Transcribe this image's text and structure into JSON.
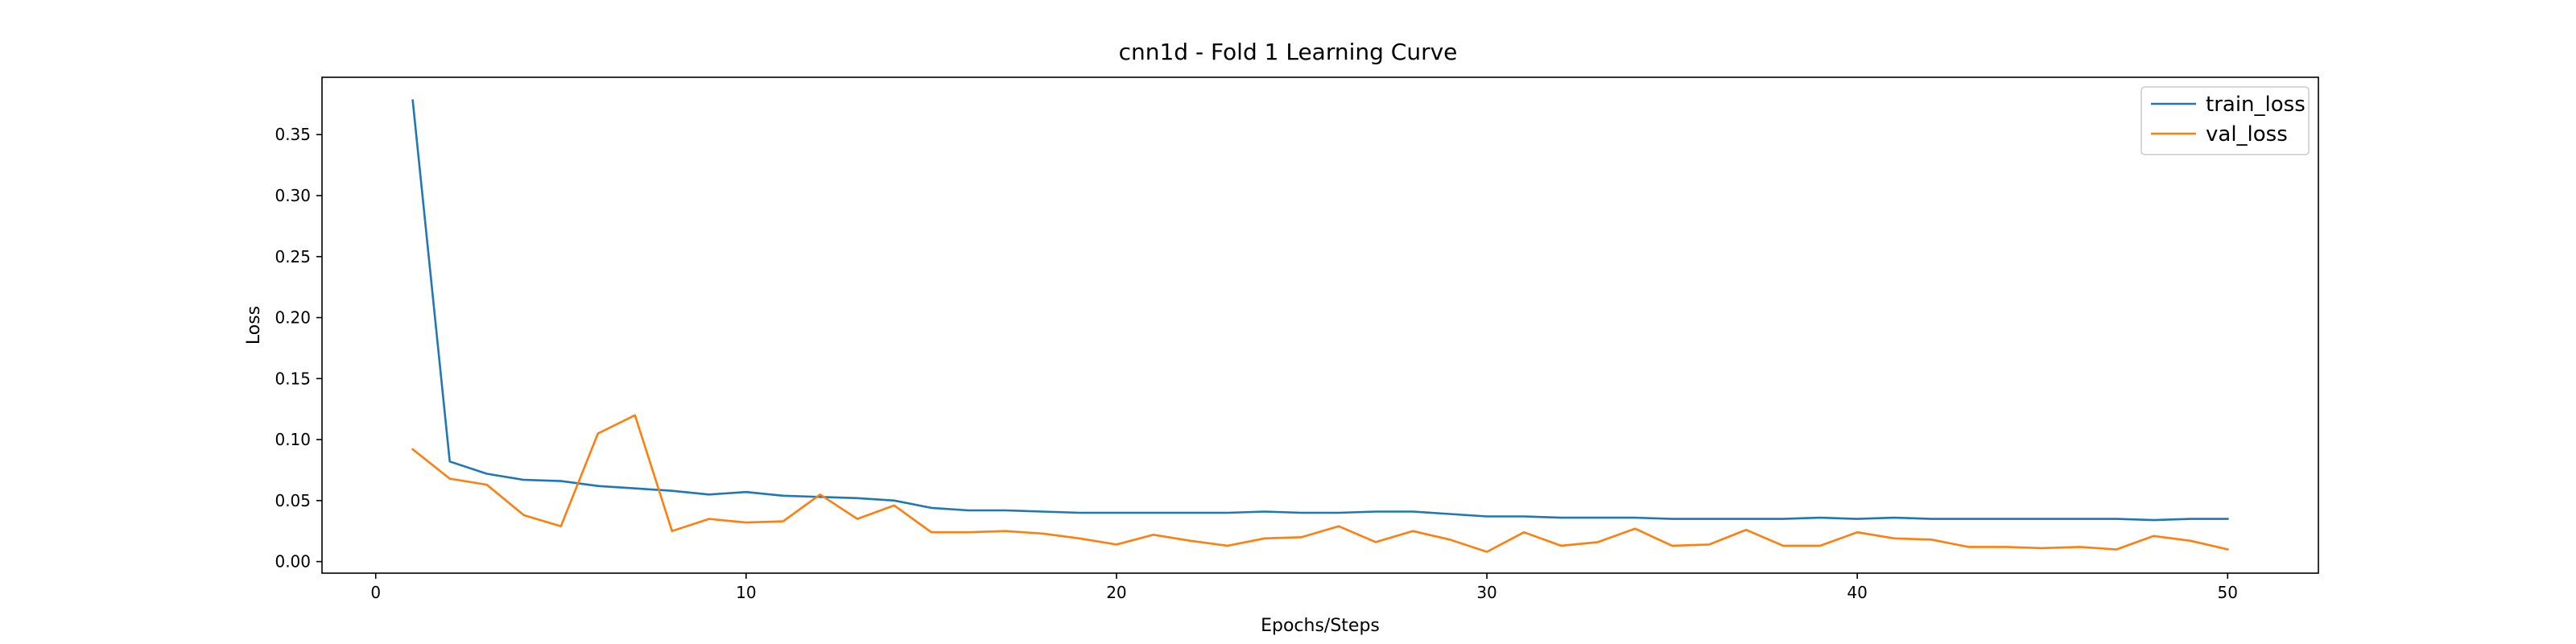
{
  "chart_data": {
    "type": "line",
    "title": "cnn1d - Fold 1 Learning Curve",
    "xlabel": "Epochs/Steps",
    "ylabel": "Loss",
    "xlim": [
      -1.45,
      52.45
    ],
    "ylim": [
      -0.0095,
      0.397
    ],
    "xticks": [
      0,
      10,
      20,
      30,
      40,
      50
    ],
    "yticks": [
      0.0,
      0.05,
      0.1,
      0.15,
      0.2,
      0.25,
      0.3,
      0.35
    ],
    "grid": false,
    "legend_position": "top-right",
    "x": [
      1,
      2,
      3,
      4,
      5,
      6,
      7,
      8,
      9,
      10,
      11,
      12,
      13,
      14,
      15,
      16,
      17,
      18,
      19,
      20,
      21,
      22,
      23,
      24,
      25,
      26,
      27,
      28,
      29,
      30,
      31,
      32,
      33,
      34,
      35,
      36,
      37,
      38,
      39,
      40,
      41,
      42,
      43,
      44,
      45,
      46,
      47,
      48,
      49,
      50
    ],
    "series": [
      {
        "name": "train_loss",
        "color": "#1f77b4",
        "values": [
          0.378,
          0.082,
          0.072,
          0.067,
          0.066,
          0.062,
          0.06,
          0.058,
          0.055,
          0.057,
          0.054,
          0.053,
          0.052,
          0.05,
          0.044,
          0.042,
          0.042,
          0.041,
          0.04,
          0.04,
          0.04,
          0.04,
          0.04,
          0.041,
          0.04,
          0.04,
          0.041,
          0.041,
          0.039,
          0.037,
          0.037,
          0.036,
          0.036,
          0.036,
          0.035,
          0.035,
          0.035,
          0.035,
          0.036,
          0.035,
          0.036,
          0.035,
          0.035,
          0.035,
          0.035,
          0.035,
          0.035,
          0.034,
          0.035,
          0.035
        ]
      },
      {
        "name": "val_loss",
        "color": "#ff7f0e",
        "values": [
          0.092,
          0.068,
          0.063,
          0.038,
          0.029,
          0.105,
          0.12,
          0.025,
          0.035,
          0.032,
          0.033,
          0.055,
          0.035,
          0.046,
          0.024,
          0.024,
          0.025,
          0.023,
          0.019,
          0.014,
          0.022,
          0.017,
          0.013,
          0.019,
          0.02,
          0.029,
          0.016,
          0.025,
          0.018,
          0.008,
          0.024,
          0.013,
          0.016,
          0.027,
          0.013,
          0.014,
          0.026,
          0.013,
          0.013,
          0.024,
          0.019,
          0.018,
          0.012,
          0.012,
          0.011,
          0.012,
          0.01,
          0.021,
          0.017,
          0.01
        ]
      }
    ]
  }
}
